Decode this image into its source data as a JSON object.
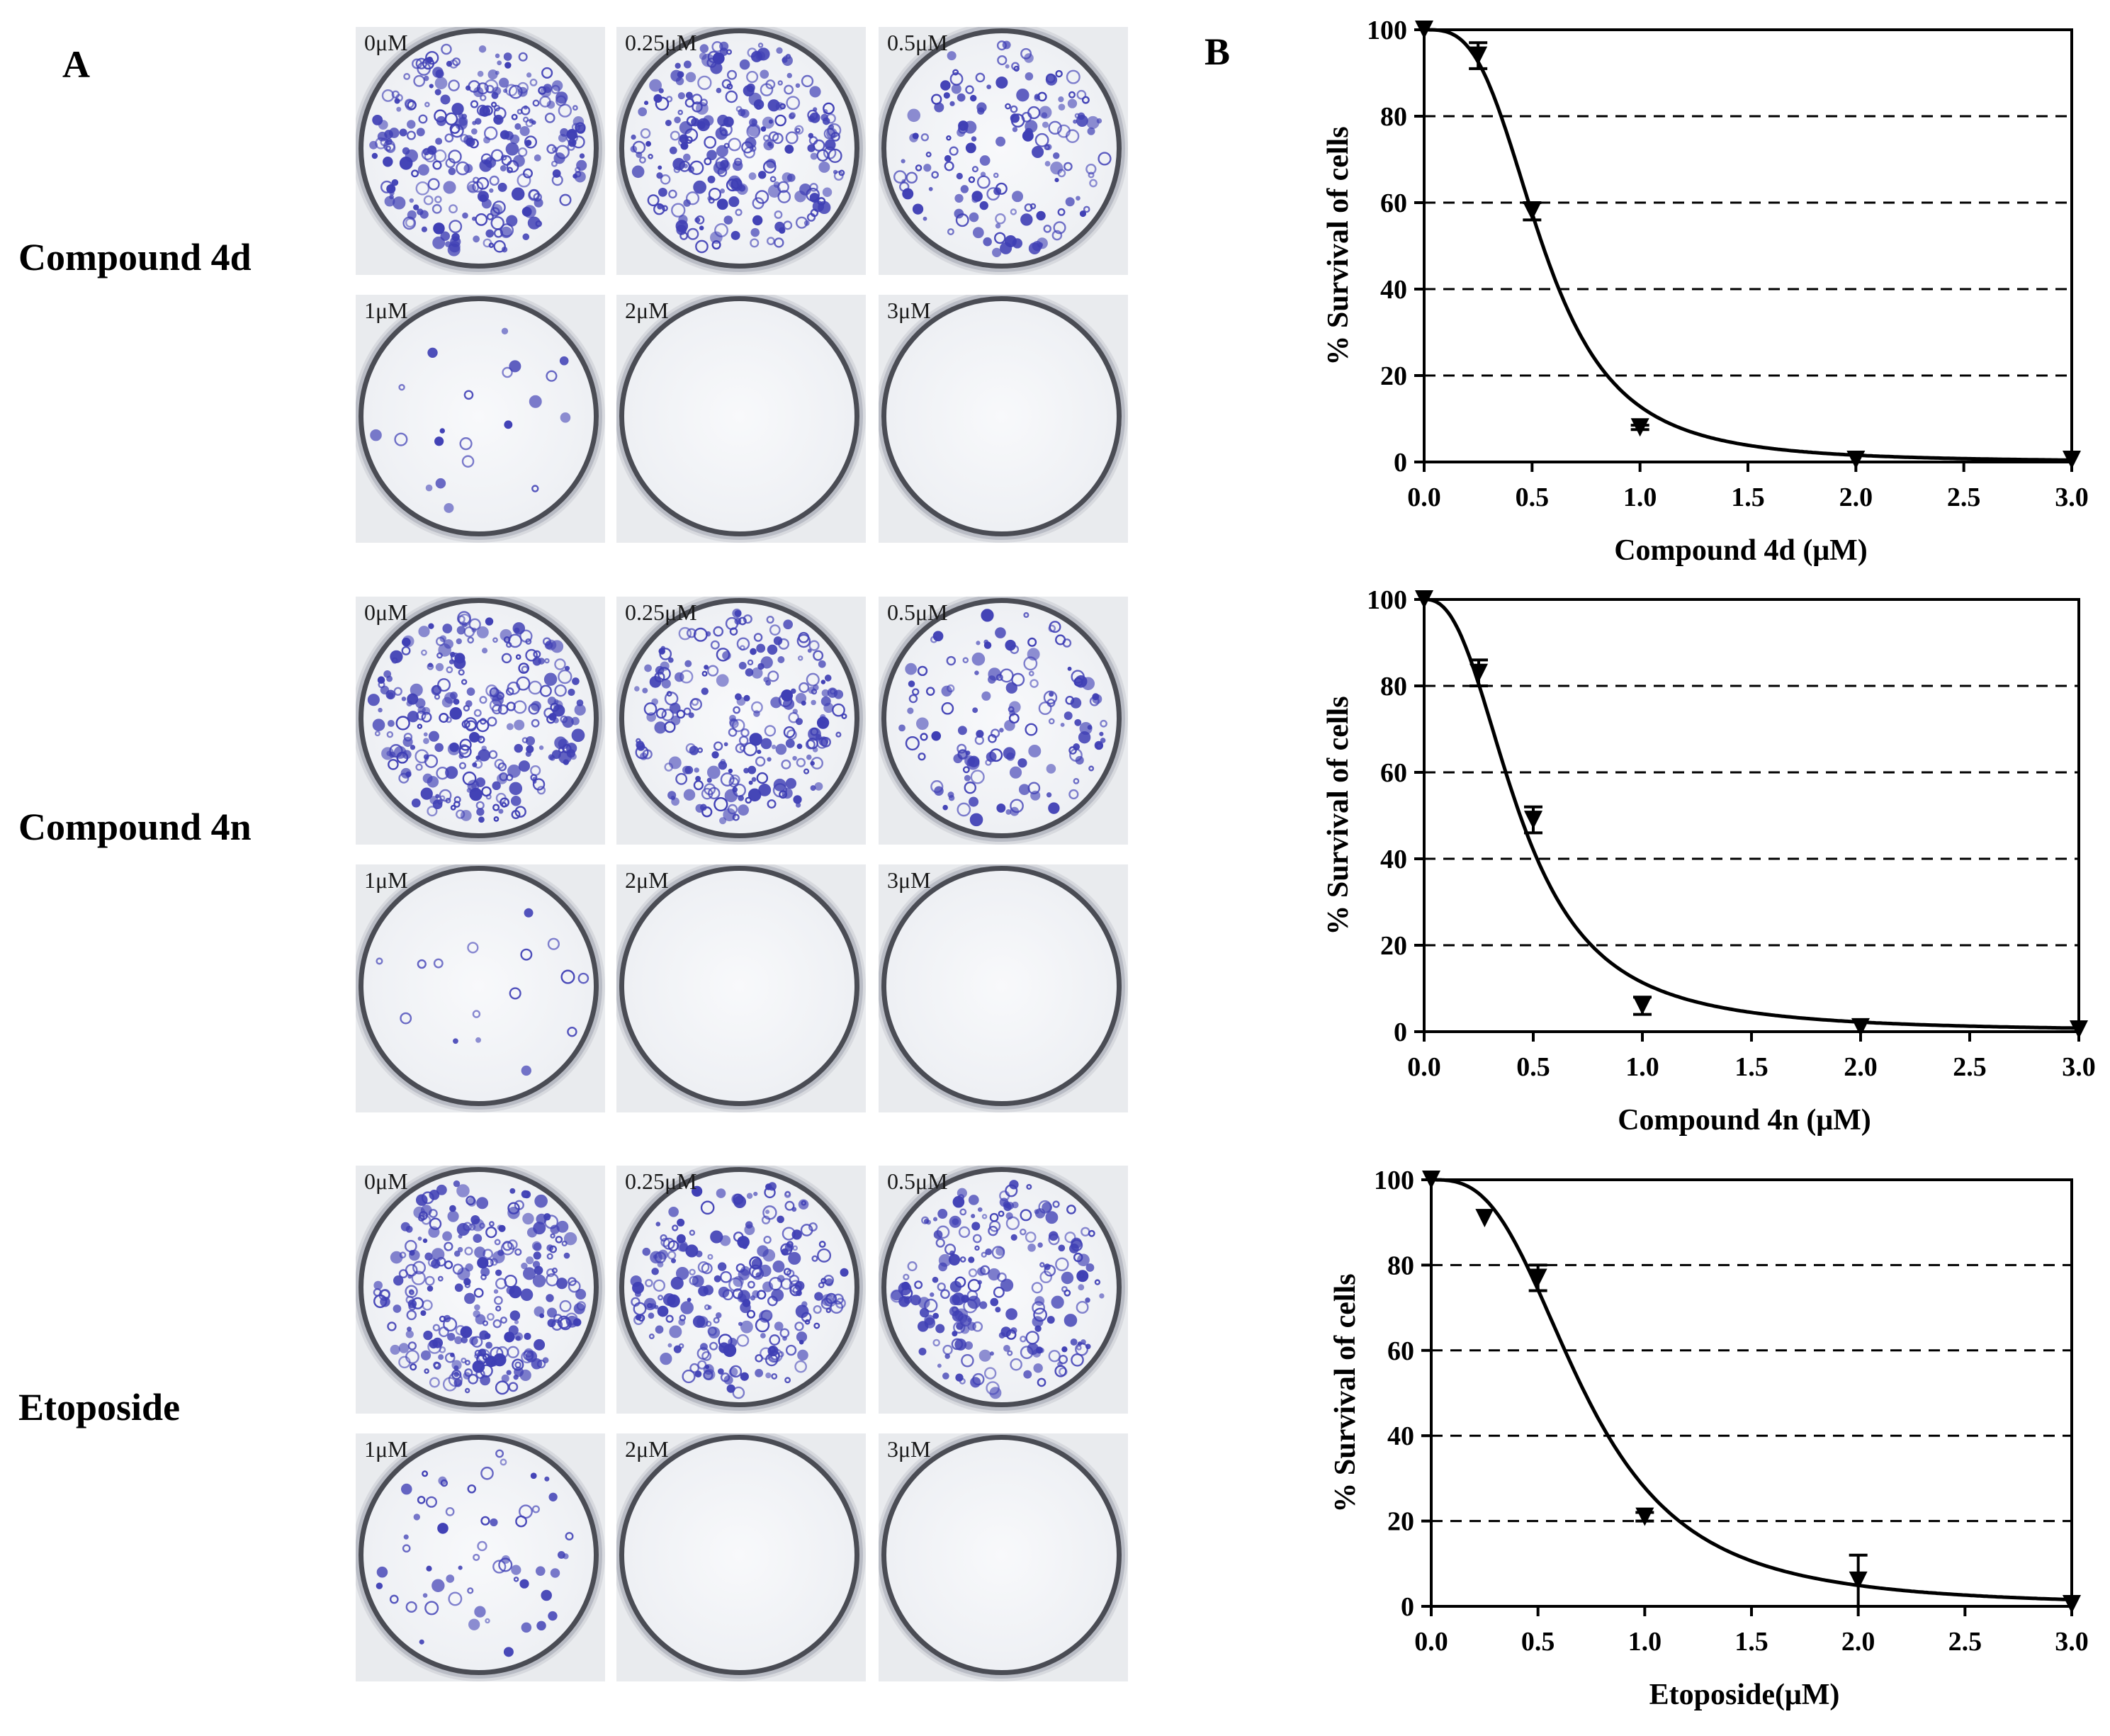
{
  "panel_a_label": "A",
  "panel_b_label": "B",
  "panel_a": {
    "groups": [
      {
        "name": "Compound 4d",
        "plates": [
          {
            "dose": "0μM",
            "colony_density": 1.0
          },
          {
            "dose": "0.25μM",
            "colony_density": 0.95
          },
          {
            "dose": "0.5μM",
            "colony_density": 0.58
          },
          {
            "dose": "1μM",
            "colony_density": 0.08
          },
          {
            "dose": "2μM",
            "colony_density": 0.0
          },
          {
            "dose": "3μM",
            "colony_density": 0.0
          }
        ]
      },
      {
        "name": "Compound 4n",
        "plates": [
          {
            "dose": "0μM",
            "colony_density": 1.0
          },
          {
            "dose": "0.25μM",
            "colony_density": 0.85
          },
          {
            "dose": "0.5μM",
            "colony_density": 0.5
          },
          {
            "dose": "1μM",
            "colony_density": 0.06
          },
          {
            "dose": "2μM",
            "colony_density": 0.0
          },
          {
            "dose": "3μM",
            "colony_density": 0.0
          }
        ]
      },
      {
        "name": "Etoposide",
        "plates": [
          {
            "dose": "0μM",
            "colony_density": 1.0
          },
          {
            "dose": "0.25μM",
            "colony_density": 0.9
          },
          {
            "dose": "0.5μM",
            "colony_density": 0.78
          },
          {
            "dose": "1μM",
            "colony_density": 0.22
          },
          {
            "dose": "2μM",
            "colony_density": 0.0
          },
          {
            "dose": "3μM",
            "colony_density": 0.0
          }
        ]
      }
    ],
    "colony_color": "#3f3fb5"
  },
  "chart_data": [
    {
      "type": "scatter",
      "title": "",
      "xlabel": "Compound 4d (μM)",
      "ylabel": "% Survival of cells",
      "xlim": [
        0.0,
        3.0
      ],
      "ylim": [
        0,
        100
      ],
      "xticks": [
        "0.0",
        "0.5",
        "1.0",
        "1.5",
        "2.0",
        "2.5",
        "3.0"
      ],
      "yticks": [
        "0",
        "20",
        "40",
        "60",
        "80",
        "100"
      ],
      "grid": "dashed horizontal",
      "points": [
        {
          "x": 0,
          "y": 100,
          "err": 0
        },
        {
          "x": 0.25,
          "y": 94,
          "err": 3
        },
        {
          "x": 0.5,
          "y": 58,
          "err": 2
        },
        {
          "x": 1.0,
          "y": 8,
          "err": 0.5
        },
        {
          "x": 2.0,
          "y": 0.5,
          "err": 0
        },
        {
          "x": 3.0,
          "y": 0.5,
          "err": 0
        }
      ],
      "fit_curve": {
        "model": "sigmoidal dose-response",
        "ic50": 0.55,
        "hill": 3.2
      }
    },
    {
      "type": "scatter",
      "title": "",
      "xlabel": "Compound 4n (μM)",
      "ylabel": "% Survival of cells",
      "xlim": [
        0.0,
        3.0
      ],
      "ylim": [
        0,
        100
      ],
      "xticks": [
        "0.0",
        "0.5",
        "1.0",
        "1.5",
        "2.0",
        "2.5",
        "3.0"
      ],
      "yticks": [
        "0",
        "20",
        "40",
        "60",
        "80",
        "100"
      ],
      "grid": "dashed horizontal",
      "points": [
        {
          "x": 0,
          "y": 100,
          "err": 0
        },
        {
          "x": 0.25,
          "y": 83,
          "err": 3
        },
        {
          "x": 0.5,
          "y": 49,
          "err": 3
        },
        {
          "x": 1.0,
          "y": 6,
          "err": 2
        },
        {
          "x": 2.0,
          "y": 1,
          "err": 0
        },
        {
          "x": 3.0,
          "y": 0.5,
          "err": 0
        }
      ],
      "fit_curve": {
        "model": "sigmoidal dose-response",
        "ic50": 0.44,
        "hill": 2.5
      }
    },
    {
      "type": "scatter",
      "title": "",
      "xlabel": "Etoposide(μM)",
      "ylabel": "% Survival of cells",
      "xlim": [
        0.0,
        3.0
      ],
      "ylim": [
        0,
        100
      ],
      "xticks": [
        "0.0",
        "0.5",
        "1.0",
        "1.5",
        "2.0",
        "2.5",
        "3.0"
      ],
      "yticks": [
        "0",
        "20",
        "40",
        "60",
        "80",
        "100"
      ],
      "grid": "dashed horizontal",
      "points": [
        {
          "x": 0,
          "y": 100,
          "err": 0
        },
        {
          "x": 0.25,
          "y": 91,
          "err": 0
        },
        {
          "x": 0.5,
          "y": 77,
          "err": 3
        },
        {
          "x": 1.0,
          "y": 21,
          "err": 1
        },
        {
          "x": 2.0,
          "y": 6,
          "err": 6
        },
        {
          "x": 3.0,
          "y": 0.5,
          "err": 0
        }
      ],
      "fit_curve": {
        "model": "sigmoidal dose-response",
        "ic50": 0.72,
        "hill": 2.9
      }
    }
  ]
}
